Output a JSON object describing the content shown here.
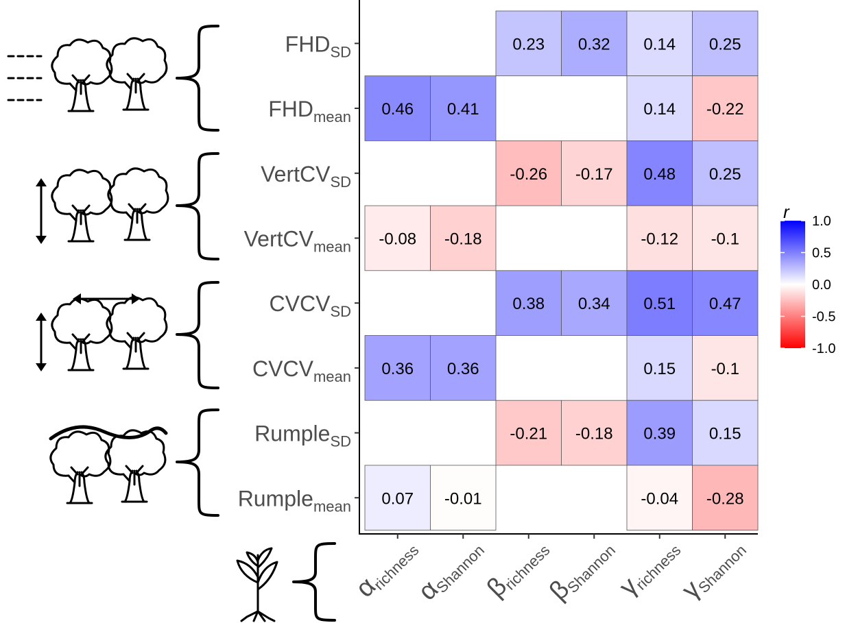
{
  "chart_data": {
    "type": "heatmap",
    "rows": [
      {
        "base": "FHD",
        "sub": "SD"
      },
      {
        "base": "FHD",
        "sub": "mean"
      },
      {
        "base": "VertCV",
        "sub": "SD"
      },
      {
        "base": "VertCV",
        "sub": "mean"
      },
      {
        "base": "CVCV",
        "sub": "SD"
      },
      {
        "base": "CVCV",
        "sub": "mean"
      },
      {
        "base": "Rumple",
        "sub": "SD"
      },
      {
        "base": "Rumple",
        "sub": "mean"
      }
    ],
    "columns": [
      {
        "base": "α",
        "sub": "richness"
      },
      {
        "base": "α",
        "sub": "Shannon"
      },
      {
        "base": "β",
        "sub": "richness"
      },
      {
        "base": "β",
        "sub": "Shannon"
      },
      {
        "base": "γ",
        "sub": "richness"
      },
      {
        "base": "γ",
        "sub": "Shannon"
      }
    ],
    "values": [
      [
        null,
        null,
        0.23,
        0.32,
        0.14,
        0.25
      ],
      [
        0.46,
        0.41,
        null,
        null,
        0.14,
        -0.22
      ],
      [
        null,
        null,
        -0.26,
        -0.17,
        0.48,
        0.25
      ],
      [
        -0.08,
        -0.18,
        null,
        null,
        -0.12,
        -0.1
      ],
      [
        null,
        null,
        0.38,
        0.34,
        0.51,
        0.47
      ],
      [
        0.36,
        0.36,
        null,
        null,
        0.15,
        -0.1
      ],
      [
        null,
        null,
        -0.21,
        -0.18,
        0.39,
        0.15
      ],
      [
        0.07,
        -0.01,
        null,
        null,
        -0.04,
        -0.28
      ]
    ],
    "value_labels": [
      [
        null,
        null,
        "0.23",
        "0.32",
        "0.14",
        "0.25"
      ],
      [
        "0.46",
        "0.41",
        null,
        null,
        "0.14",
        "-0.22"
      ],
      [
        null,
        null,
        "-0.26",
        "-0.17",
        "0.48",
        "0.25"
      ],
      [
        "-0.08",
        "-0.18",
        null,
        null,
        "-0.12",
        "-0.1"
      ],
      [
        null,
        null,
        "0.38",
        "0.34",
        "0.51",
        "0.47"
      ],
      [
        "0.36",
        "0.36",
        null,
        null,
        "0.15",
        "-0.1"
      ],
      [
        null,
        null,
        "-0.21",
        "-0.18",
        "0.39",
        "0.15"
      ],
      [
        "0.07",
        "-0.01",
        null,
        null,
        "-0.04",
        "-0.28"
      ]
    ],
    "color_scale": {
      "title": "r",
      "min": -1.0,
      "max": 1.0,
      "low_color": "#ff0000",
      "mid_color": "#ffffff",
      "high_color": "#0000ff",
      "ticks": [
        1.0,
        0.5,
        0.0,
        -0.5,
        -1.0
      ],
      "tick_labels": [
        "1.0",
        "0.5",
        "0.0",
        "-0.5",
        "-1.0"
      ]
    },
    "row_groups": [
      {
        "icon": "trees-with-layer-lines-icon",
        "rows": [
          0,
          1
        ]
      },
      {
        "icon": "trees-with-vertical-arrow-icon",
        "rows": [
          2,
          3
        ]
      },
      {
        "icon": "trees-with-vertical-and-horizontal-arrows-icon",
        "rows": [
          4,
          5
        ]
      },
      {
        "icon": "trees-with-canopy-surface-curve-icon",
        "rows": [
          6,
          7
        ]
      }
    ],
    "column_group_icon": "plant-seedling-icon",
    "grid": false,
    "legend_position": "right"
  }
}
